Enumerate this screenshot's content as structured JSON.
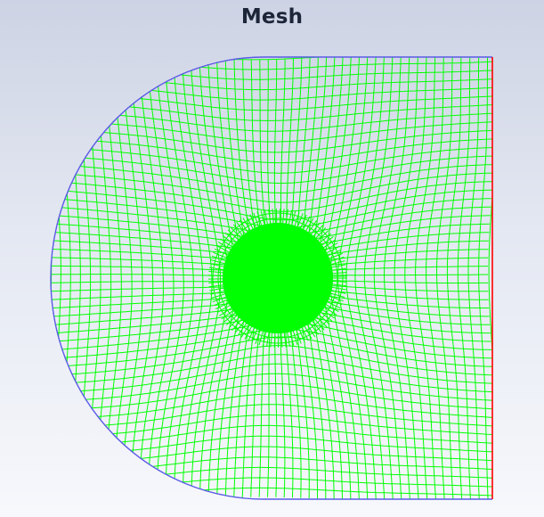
{
  "window": {
    "title": "Mesh"
  },
  "colors": {
    "background_top": "#cdd3e4",
    "background_bottom": "#f7f8fc",
    "mesh_lines": "#00ff00",
    "boundary_wall": "#5a5ae6",
    "boundary_outlet": "#ff0000",
    "title_text": "#1c2638"
  },
  "mesh": {
    "domain_shape": "semicircle-plus-rectangle",
    "refinement_region": "circular-obstacle-center",
    "element_type": "quadrilateral"
  }
}
